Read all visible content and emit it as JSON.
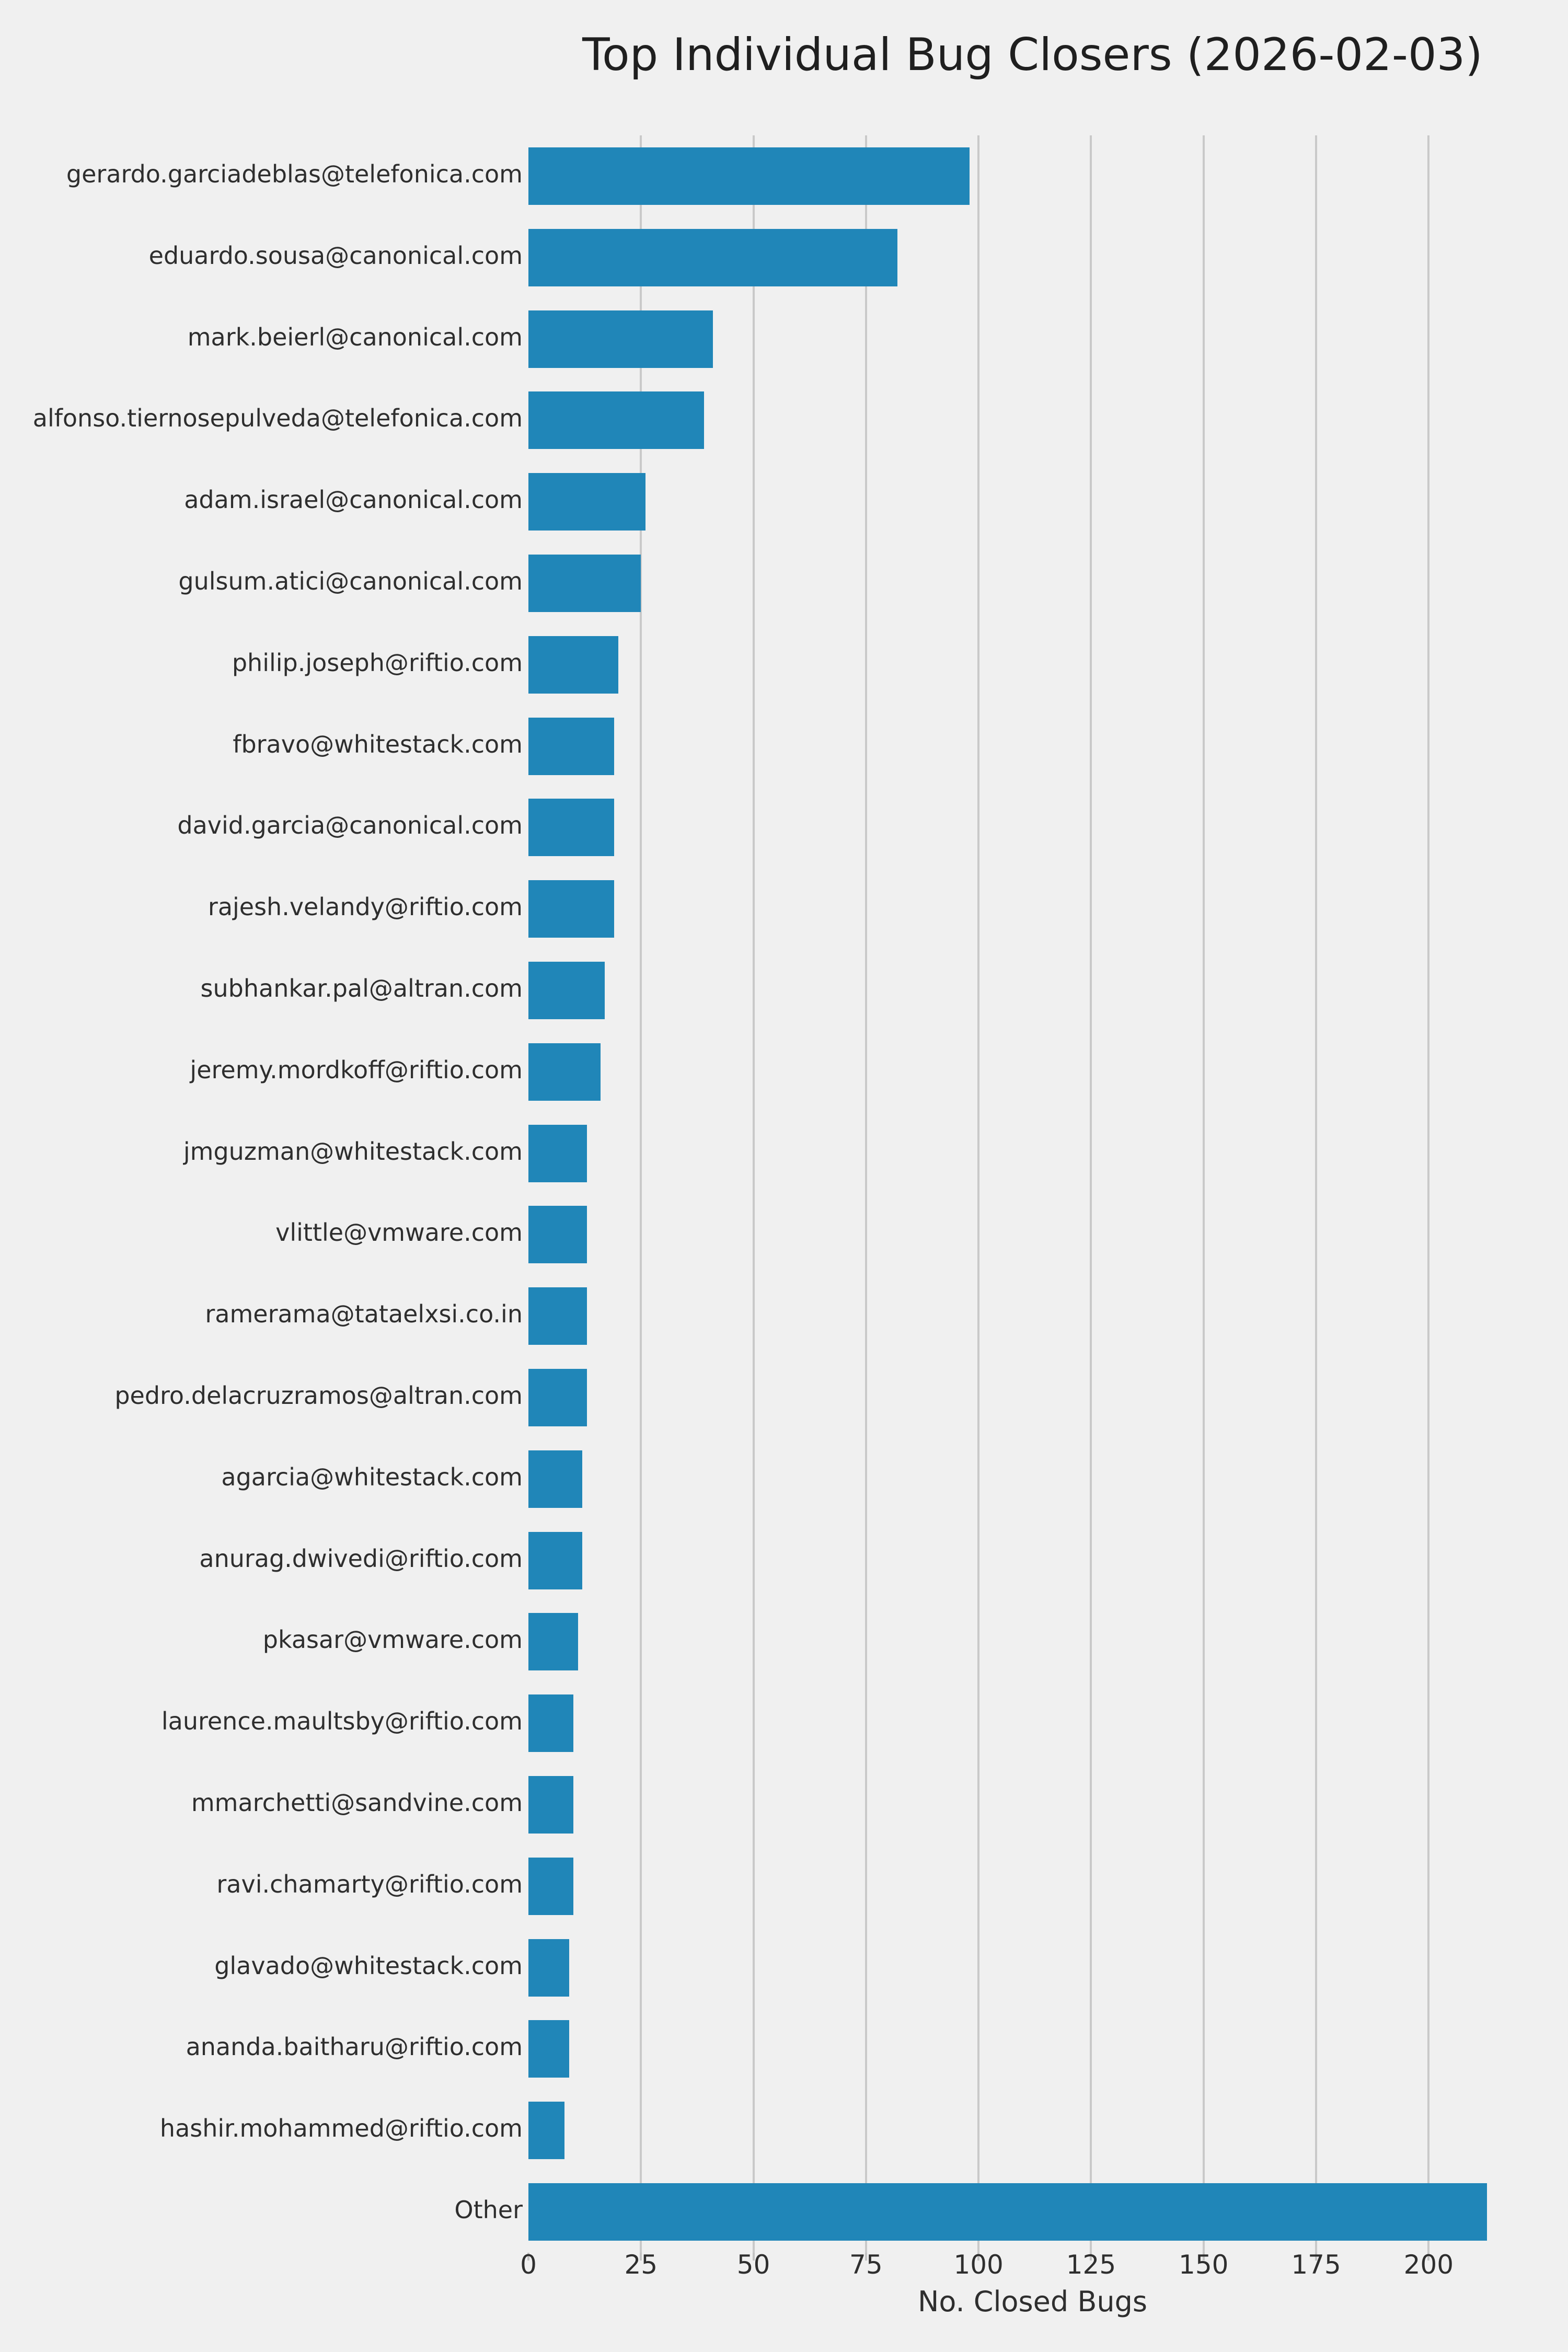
{
  "title": "Top Individual Bug Closers (2026-02-03)",
  "colors": {
    "background": "#f0f0f0",
    "bar": "#2086b8",
    "grid": "#c9c9c9",
    "text": "#2e2e2e"
  },
  "chart_data": {
    "type": "bar",
    "orientation": "horizontal",
    "title": "Top Individual Bug Closers (2026-02-03)",
    "xlabel": "No. Closed Bugs",
    "ylabel": "",
    "xlim": [
      0,
      224
    ],
    "xticks": [
      0,
      25,
      50,
      75,
      100,
      125,
      150,
      175,
      200
    ],
    "grid": true,
    "legend": false,
    "categories": [
      "gerardo.garciadeblas@telefonica.com",
      "eduardo.sousa@canonical.com",
      "mark.beierl@canonical.com",
      "alfonso.tiernosepulveda@telefonica.com",
      "adam.israel@canonical.com",
      "gulsum.atici@canonical.com",
      "philip.joseph@riftio.com",
      "fbravo@whitestack.com",
      "david.garcia@canonical.com",
      "rajesh.velandy@riftio.com",
      "subhankar.pal@altran.com",
      "jeremy.mordkoff@riftio.com",
      "jmguzman@whitestack.com",
      "vlittle@vmware.com",
      "ramerama@tataelxsi.co.in",
      "pedro.delacruzramos@altran.com",
      "agarcia@whitestack.com",
      "anurag.dwivedi@riftio.com",
      "pkasar@vmware.com",
      "laurence.maultsby@riftio.com",
      "mmarchetti@sandvine.com",
      "ravi.chamarty@riftio.com",
      "glavado@whitestack.com",
      "ananda.baitharu@riftio.com",
      "hashir.mohammed@riftio.com",
      "Other"
    ],
    "values": [
      98,
      82,
      41,
      39,
      26,
      25,
      20,
      19,
      19,
      19,
      17,
      16,
      13,
      13,
      13,
      13,
      12,
      12,
      11,
      10,
      10,
      10,
      9,
      9,
      8,
      213
    ]
  }
}
